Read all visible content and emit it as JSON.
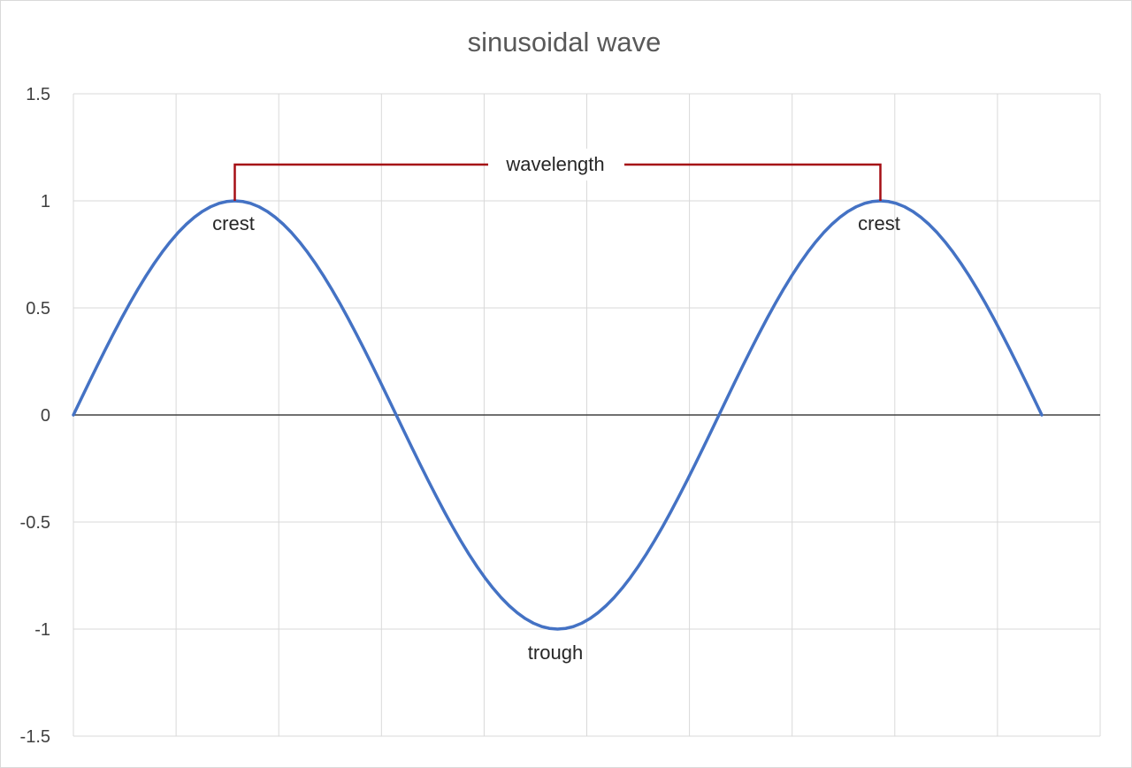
{
  "chart_data": {
    "type": "line",
    "title": "sinusoidal wave",
    "xlabel": "",
    "ylabel": "",
    "ylim": [
      -1.5,
      1.5
    ],
    "y_ticks": [
      "1.5",
      "1",
      "0.5",
      "0",
      "-0.5",
      "-1",
      "-1.5"
    ],
    "y_tick_values": [
      1.5,
      1,
      0.5,
      0,
      -0.5,
      -1,
      -1.5
    ],
    "x_grid_count": 10,
    "grid": true,
    "legend": "none",
    "series": [
      {
        "color": "#4472c4",
        "function": "sin",
        "cycles": 1.5,
        "samples": 121
      }
    ],
    "annotations": {
      "crest_left": {
        "text": "crest",
        "y": 1
      },
      "crest_right": {
        "text": "crest",
        "y": 1
      },
      "trough": {
        "text": "trough",
        "y": -1
      },
      "wavelength": {
        "text": "wavelength",
        "color": "#a50f15"
      }
    },
    "colors": {
      "grid": "#d9d9d9",
      "axis": "#404040",
      "bracket": "#a50f15"
    }
  }
}
